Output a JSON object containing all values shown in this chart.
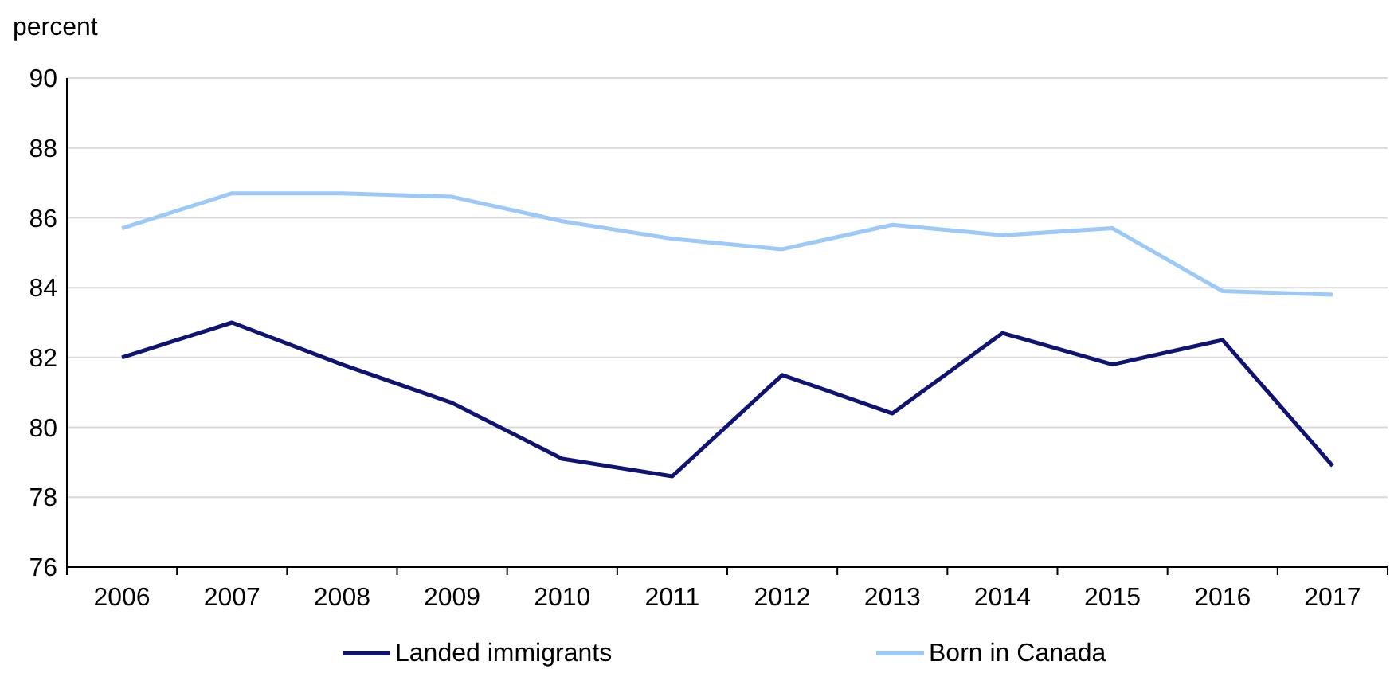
{
  "chart_data": {
    "type": "line",
    "ylabel": "percent",
    "categories": [
      "2006",
      "2007",
      "2008",
      "2009",
      "2010",
      "2011",
      "2012",
      "2013",
      "2014",
      "2015",
      "2016",
      "2017"
    ],
    "series": [
      {
        "name": "Landed immigrants",
        "color": "#0f1473",
        "values": [
          82.0,
          83.0,
          81.8,
          80.7,
          79.1,
          78.6,
          81.5,
          80.4,
          82.7,
          81.8,
          82.5,
          78.9
        ]
      },
      {
        "name": "Born in Canada",
        "color": "#9cc9f7",
        "values": [
          85.7,
          86.7,
          86.7,
          86.6,
          85.9,
          85.4,
          85.1,
          85.8,
          85.5,
          85.7,
          83.9,
          83.8
        ]
      }
    ],
    "ylim": [
      76,
      90
    ],
    "yticks": [
      76,
      78,
      80,
      82,
      84,
      86,
      88,
      90
    ],
    "grid": "y",
    "legend": "bottom",
    "marker": "none",
    "line_style": "solid"
  }
}
